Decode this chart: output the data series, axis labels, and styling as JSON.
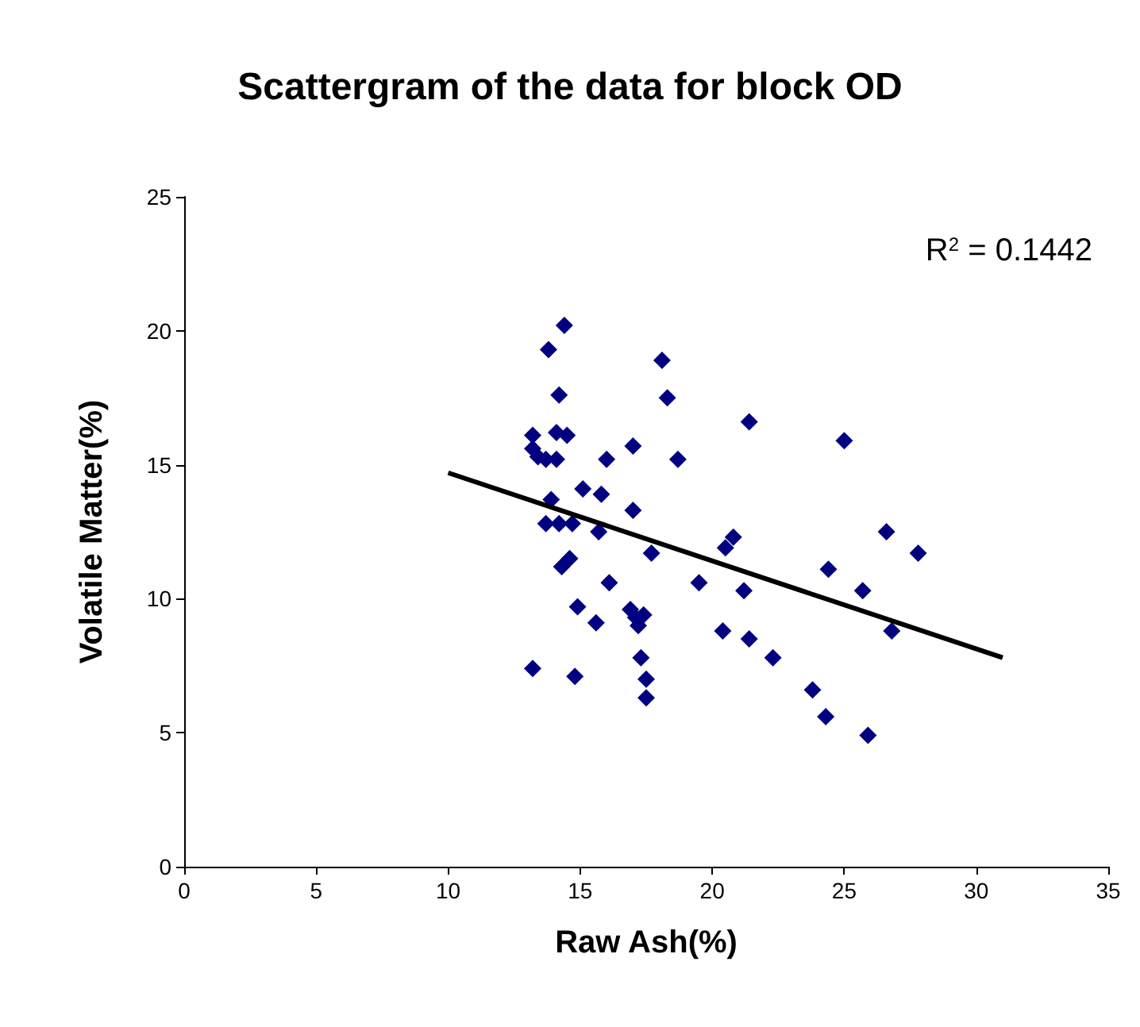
{
  "chart_data": {
    "type": "scatter",
    "title": "Scattergram of the data for block OD",
    "xlabel": "Raw Ash(%)",
    "ylabel": "Volatile Matter(%)",
    "xlim": [
      0,
      35
    ],
    "xticks": [
      0,
      5,
      10,
      15,
      20,
      25,
      30,
      35
    ],
    "ylim": [
      0,
      25
    ],
    "yticks": [
      0,
      5,
      10,
      15,
      20,
      25
    ],
    "grid": false,
    "marker": "diamond",
    "annotations": [
      "R$^{2}$ = 0.1442"
    ],
    "series": [
      {
        "color": "#000080",
        "x": [
          13.2,
          13.2,
          13.4,
          13.7,
          14.1,
          13.7,
          13.9,
          13.8,
          14.4,
          14.2,
          14.1,
          14.5,
          14.2,
          14.7,
          14.3,
          14.6,
          13.2,
          14.8,
          14.9,
          15.1,
          15.6,
          15.7,
          15.8,
          16.0,
          16.1,
          17.0,
          17.0,
          16.9,
          17.1,
          17.2,
          17.3,
          17.4,
          17.5,
          17.5,
          17.7,
          18.1,
          18.3,
          18.7,
          19.5,
          20.4,
          20.5,
          20.8,
          21.2,
          21.4,
          21.4,
          22.3,
          23.8,
          24.3,
          24.4,
          25.0,
          25.7,
          25.9,
          26.6,
          26.8,
          27.8
        ],
        "values": [
          16.1,
          15.6,
          15.3,
          15.2,
          15.2,
          12.8,
          13.7,
          19.3,
          20.2,
          17.6,
          16.2,
          16.1,
          12.8,
          12.8,
          11.2,
          11.5,
          7.4,
          7.1,
          9.7,
          14.1,
          9.1,
          12.5,
          13.9,
          15.2,
          10.6,
          15.7,
          13.3,
          9.6,
          9.3,
          9.0,
          7.8,
          9.4,
          7.0,
          6.3,
          11.7,
          18.9,
          17.5,
          15.2,
          10.6,
          8.8,
          11.9,
          12.3,
          10.3,
          8.5,
          16.6,
          7.8,
          6.6,
          5.6,
          11.1,
          15.9,
          10.3,
          4.9,
          12.5,
          8.8,
          11.7
        ]
      },
      {
        "type": "line",
        "color": "#000000",
        "marker": "none",
        "x": [
          10.0,
          31.0
        ],
        "values": [
          14.7,
          7.8
        ]
      }
    ]
  }
}
